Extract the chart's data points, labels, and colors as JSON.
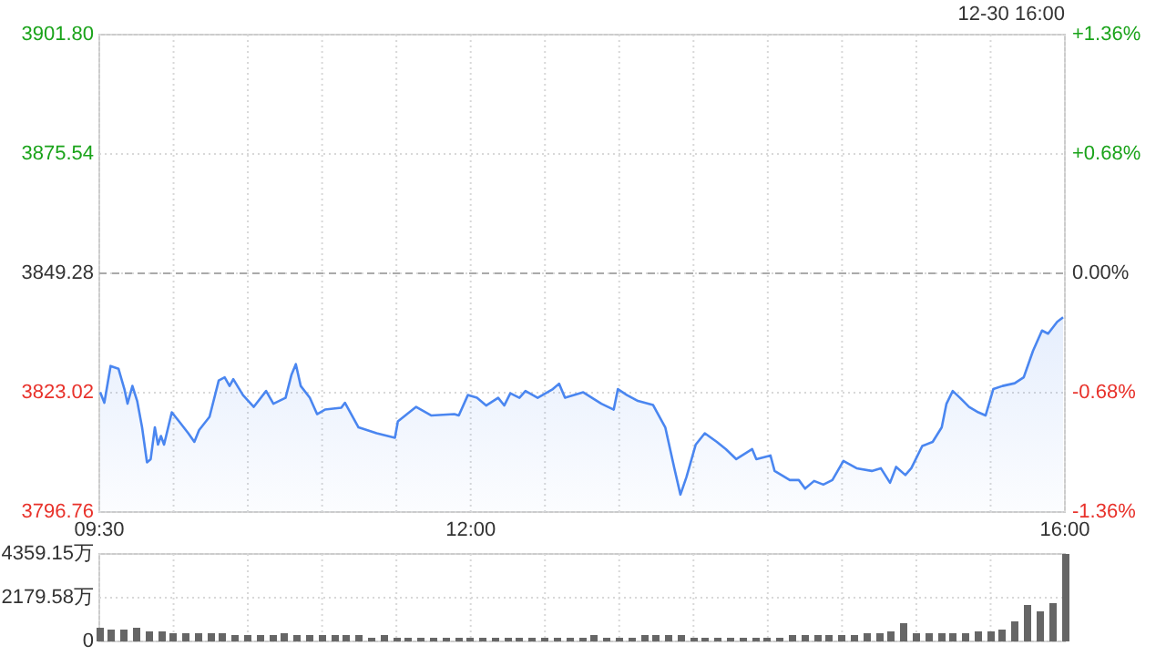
{
  "chart_data": [
    {
      "type": "area",
      "subtitle": "12-30 16:00",
      "series": [
        {
          "color": "#4a86f0",
          "x": [
            9.506,
            9.534,
            9.576,
            9.629,
            9.669,
            9.69,
            9.723,
            9.755,
            9.788,
            9.821,
            9.846,
            9.874,
            9.895,
            9.915,
            9.936,
            9.988,
            10.037,
            10.099,
            10.14,
            10.172,
            10.242,
            10.304,
            10.344,
            10.377,
            10.402,
            10.467,
            10.54,
            10.623,
            10.672,
            10.754,
            10.794,
            10.823,
            10.856,
            10.917,
            10.966,
            11.019,
            11.129,
            11.154,
            11.245,
            11.367,
            11.49,
            11.51,
            11.633,
            11.736,
            11.89,
            11.92,
            11.981,
            12.042,
            12.104,
            12.185,
            12.226,
            12.267,
            12.328,
            12.369,
            12.451,
            12.553,
            12.595,
            12.635,
            12.758,
            12.88,
            12.963,
            12.991,
            13.052,
            13.126,
            13.228,
            13.31,
            13.371,
            13.412,
            13.453,
            13.515,
            13.576,
            13.657,
            13.718,
            13.788,
            13.895,
            13.923,
            14.018,
            14.046,
            14.148,
            14.209,
            14.251,
            14.312,
            14.374,
            14.435,
            14.509,
            14.598,
            14.7,
            14.761,
            14.823,
            14.864,
            14.926,
            14.966,
            15.04,
            15.11,
            15.171,
            15.203,
            15.245,
            15.294,
            15.355,
            15.417,
            15.466,
            15.518,
            15.58,
            15.662,
            15.723,
            15.785,
            15.846,
            15.887,
            15.948,
            15.988
          ],
          "values": [
            3823.1,
            3820.8,
            3828.9,
            3828.3,
            3823.8,
            3820.6,
            3824.5,
            3821.2,
            3815.4,
            3807.7,
            3808.4,
            3815.4,
            3811.6,
            3813.5,
            3811.6,
            3818.7,
            3816.7,
            3814.1,
            3812.2,
            3814.8,
            3817.7,
            3825.7,
            3826.4,
            3824.5,
            3826.0,
            3822.5,
            3819.9,
            3823.4,
            3820.6,
            3821.9,
            3827.0,
            3829.3,
            3824.5,
            3821.9,
            3818.3,
            3819.3,
            3819.7,
            3820.8,
            3815.4,
            3814.1,
            3813.1,
            3816.7,
            3819.9,
            3818.0,
            3818.3,
            3818.0,
            3822.5,
            3821.9,
            3820.2,
            3821.9,
            3820.2,
            3822.9,
            3821.9,
            3823.4,
            3821.9,
            3823.8,
            3825.0,
            3821.9,
            3823.1,
            3820.6,
            3819.3,
            3823.8,
            3822.5,
            3821.2,
            3820.3,
            3815.4,
            3806.4,
            3800.6,
            3804.5,
            3811.6,
            3814.1,
            3812.2,
            3810.6,
            3808.4,
            3810.6,
            3808.4,
            3809.2,
            3805.8,
            3803.8,
            3803.8,
            3801.9,
            3803.6,
            3802.8,
            3803.8,
            3808.0,
            3806.4,
            3805.8,
            3806.4,
            3803.2,
            3806.7,
            3804.9,
            3806.4,
            3811.3,
            3812.2,
            3815.4,
            3820.6,
            3823.4,
            3821.9,
            3819.9,
            3818.7,
            3818.0,
            3823.8,
            3824.5,
            3825.1,
            3826.4,
            3832.2,
            3836.7,
            3836.0,
            3838.6,
            3839.6
          ]
        }
      ],
      "xlim": [
        9.5,
        16
      ],
      "xticks": [
        {
          "value": 9.5,
          "label": "09:30"
        },
        {
          "value": 10,
          "label": null
        },
        {
          "value": 10.5,
          "label": null
        },
        {
          "value": 11,
          "label": null
        },
        {
          "value": 11.5,
          "label": null
        },
        {
          "value": 12,
          "label": "12:00"
        },
        {
          "value": 12.5,
          "label": null
        },
        {
          "value": 13,
          "label": null
        },
        {
          "value": 13.5,
          "label": null
        },
        {
          "value": 14,
          "label": null
        },
        {
          "value": 14.5,
          "label": null
        },
        {
          "value": 15,
          "label": null
        },
        {
          "value": 15.5,
          "label": null
        },
        {
          "value": 16,
          "label": "16:00"
        }
      ],
      "ylim": [
        3796.76,
        3901.8
      ],
      "yticks": [
        {
          "value": 3796.76,
          "label": "3796.76"
        },
        {
          "value": 3823.02,
          "label": "3823.02"
        },
        {
          "value": 3849.28,
          "label": "3849.28"
        },
        {
          "value": 3875.54,
          "label": "3875.54"
        },
        {
          "value": 3901.8,
          "label": "3901.80"
        }
      ],
      "y2lim": [
        -1.36,
        1.36
      ],
      "y2ticks": [
        {
          "value": -1.36,
          "label": "-1.36%"
        },
        {
          "value": -0.68,
          "label": "-0.68%"
        },
        {
          "value": 0,
          "label": "0.00%"
        },
        {
          "value": 0.68,
          "label": "+0.68%"
        },
        {
          "value": 1.36,
          "label": "+1.36%"
        }
      ],
      "ref_lines": [
        {
          "axis": "y",
          "value": 3849.28,
          "color": "#aaaaaa",
          "line_style": "dashed"
        }
      ],
      "grid": true
    },
    {
      "type": "bar",
      "color": "#666666",
      "x": [
        9.5,
        9.583,
        9.667,
        9.75,
        9.833,
        9.917,
        10,
        10.083,
        10.167,
        10.25,
        10.333,
        10.417,
        10.5,
        10.583,
        10.667,
        10.75,
        10.833,
        10.917,
        11,
        11.083,
        11.167,
        11.25,
        11.333,
        11.417,
        11.5,
        11.583,
        11.667,
        11.75,
        11.833,
        11.917,
        12,
        12.083,
        12.167,
        12.25,
        12.333,
        12.417,
        12.5,
        12.583,
        12.667,
        12.75,
        12.833,
        12.917,
        13,
        13.083,
        13.167,
        13.25,
        13.333,
        13.417,
        13.5,
        13.583,
        13.667,
        13.75,
        13.833,
        13.917,
        14,
        14.083,
        14.167,
        14.25,
        14.333,
        14.417,
        14.5,
        14.583,
        14.667,
        14.75,
        14.833,
        14.917,
        15,
        15.083,
        15.167,
        15.25,
        15.333,
        15.417,
        15.5,
        15.583,
        15.667,
        15.75,
        15.833,
        15.917,
        16
      ],
      "values": [
        700,
        600,
        600,
        700,
        500,
        500,
        400,
        400,
        400,
        400,
        400,
        300,
        300,
        300,
        300,
        400,
        300,
        300,
        300,
        300,
        300,
        300,
        200,
        300,
        200,
        200,
        200,
        200,
        200,
        200,
        200,
        200,
        200,
        200,
        200,
        200,
        200,
        200,
        200,
        200,
        300,
        200,
        200,
        200,
        300,
        300,
        300,
        300,
        200,
        200,
        200,
        200,
        200,
        200,
        200,
        200,
        300,
        300,
        300,
        300,
        300,
        300,
        400,
        400,
        500,
        900,
        400,
        400,
        400,
        400,
        400,
        500,
        500,
        600,
        1000,
        1800,
        1500,
        1900,
        4359.15
      ],
      "xlim": [
        9.5,
        16
      ],
      "xticks": [
        {
          "value": 9.5,
          "label": null
        },
        {
          "value": 10,
          "label": null
        },
        {
          "value": 10.5,
          "label": null
        },
        {
          "value": 11,
          "label": null
        },
        {
          "value": 11.5,
          "label": null
        },
        {
          "value": 12,
          "label": null
        },
        {
          "value": 12.5,
          "label": null
        },
        {
          "value": 13,
          "label": null
        },
        {
          "value": 13.5,
          "label": null
        },
        {
          "value": 14,
          "label": null
        },
        {
          "value": 14.5,
          "label": null
        },
        {
          "value": 15,
          "label": null
        },
        {
          "value": 15.5,
          "label": null
        },
        {
          "value": 16,
          "label": null
        }
      ],
      "ylim": [
        0,
        4359.15
      ],
      "yticks": [
        {
          "value": 0,
          "label": "0"
        },
        {
          "value": 2179.58,
          "label": "2179.58万"
        },
        {
          "value": 4359.15,
          "label": "4359.15万"
        }
      ],
      "tick_labels": "y",
      "grid": true
    }
  ]
}
